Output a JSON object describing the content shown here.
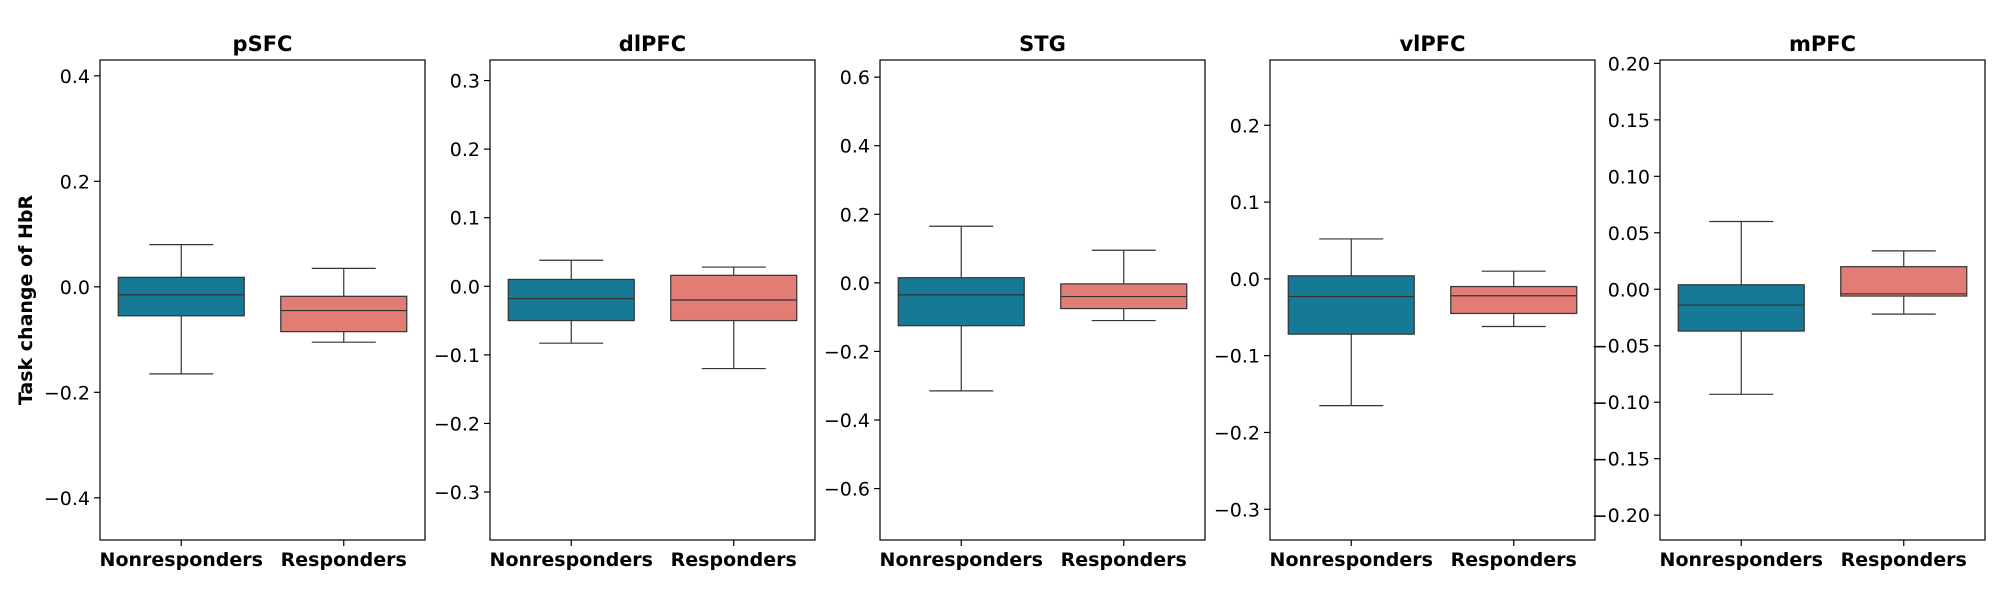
{
  "ylabel": "Task change of HbR",
  "colors": {
    "Nonresponders": "#167a96",
    "Responders": "#e27d76"
  },
  "chart_data": [
    {
      "type": "box",
      "title": "pSFC",
      "categories": [
        "Nonresponders",
        "Responders"
      ],
      "ylim": [
        -0.48,
        0.43
      ],
      "yticks": [
        -0.4,
        -0.2,
        0.0,
        0.2,
        0.4
      ],
      "ytick_labels": [
        "−0.4",
        "−0.2",
        "0.0",
        "0.2",
        "0.4"
      ],
      "boxes": [
        {
          "group": "Nonresponders",
          "whisker_low": -0.165,
          "q1": -0.055,
          "median": -0.015,
          "q3": 0.018,
          "whisker_high": 0.08
        },
        {
          "group": "Responders",
          "whisker_low": -0.105,
          "q1": -0.085,
          "median": -0.045,
          "q3": -0.018,
          "whisker_high": 0.035
        }
      ]
    },
    {
      "type": "box",
      "title": "dlPFC",
      "categories": [
        "Nonresponders",
        "Responders"
      ],
      "ylim": [
        -0.37,
        0.33
      ],
      "yticks": [
        -0.3,
        -0.2,
        -0.1,
        0.0,
        0.1,
        0.2,
        0.3
      ],
      "ytick_labels": [
        "−0.3",
        "−0.2",
        "−0.1",
        "0.0",
        "0.1",
        "0.2",
        "0.3"
      ],
      "boxes": [
        {
          "group": "Nonresponders",
          "whisker_low": -0.083,
          "q1": -0.05,
          "median": -0.018,
          "q3": 0.01,
          "whisker_high": 0.038
        },
        {
          "group": "Responders",
          "whisker_low": -0.12,
          "q1": -0.05,
          "median": -0.02,
          "q3": 0.016,
          "whisker_high": 0.028
        }
      ]
    },
    {
      "type": "box",
      "title": "STG",
      "categories": [
        "Nonresponders",
        "Responders"
      ],
      "ylim": [
        -0.75,
        0.65
      ],
      "yticks": [
        -0.6,
        -0.4,
        -0.2,
        0.0,
        0.2,
        0.4,
        0.6
      ],
      "ytick_labels": [
        "−0.6",
        "−0.4",
        "−0.2",
        "0.0",
        "0.2",
        "0.4",
        "0.6"
      ],
      "boxes": [
        {
          "group": "Nonresponders",
          "whisker_low": -0.315,
          "q1": -0.125,
          "median": -0.035,
          "q3": 0.015,
          "whisker_high": 0.165
        },
        {
          "group": "Responders",
          "whisker_low": -0.11,
          "q1": -0.075,
          "median": -0.04,
          "q3": -0.003,
          "whisker_high": 0.095
        }
      ]
    },
    {
      "type": "box",
      "title": "vlPFC",
      "categories": [
        "Nonresponders",
        "Responders"
      ],
      "ylim": [
        -0.34,
        0.285
      ],
      "yticks": [
        -0.3,
        -0.2,
        -0.1,
        0.0,
        0.1,
        0.2
      ],
      "ytick_labels": [
        "−0.3",
        "−0.2",
        "−0.1",
        "0.0",
        "0.1",
        "0.2"
      ],
      "boxes": [
        {
          "group": "Nonresponders",
          "whisker_low": -0.165,
          "q1": -0.072,
          "median": -0.023,
          "q3": 0.004,
          "whisker_high": 0.052
        },
        {
          "group": "Responders",
          "whisker_low": -0.062,
          "q1": -0.045,
          "median": -0.022,
          "q3": -0.01,
          "whisker_high": 0.01
        }
      ]
    },
    {
      "type": "box",
      "title": "mPFC",
      "categories": [
        "Nonresponders",
        "Responders"
      ],
      "ylim": [
        -0.222,
        0.203
      ],
      "yticks": [
        -0.2,
        -0.15,
        -0.1,
        -0.05,
        0.0,
        0.05,
        0.1,
        0.15,
        0.2
      ],
      "ytick_labels": [
        "−0.20",
        "−0.15",
        "−0.10",
        "−0.05",
        "0.00",
        "0.05",
        "0.10",
        "0.15",
        "0.20"
      ],
      "boxes": [
        {
          "group": "Nonresponders",
          "whisker_low": -0.093,
          "q1": -0.037,
          "median": -0.014,
          "q3": 0.004,
          "whisker_high": 0.06
        },
        {
          "group": "Responders",
          "whisker_low": -0.022,
          "q1": -0.006,
          "median": -0.004,
          "q3": 0.02,
          "whisker_high": 0.034
        }
      ]
    }
  ]
}
